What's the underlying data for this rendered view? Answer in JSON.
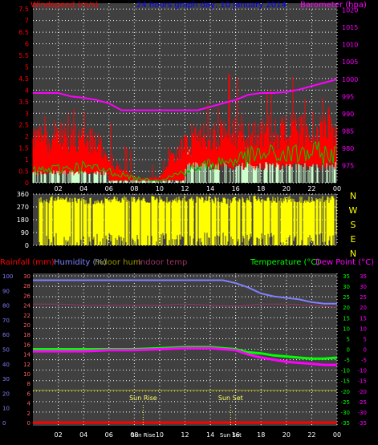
{
  "chart_data": [
    {
      "type": "bar",
      "panel": "wind-barometer",
      "title": "24 hours graph day, 10 January 2014",
      "y_left_label": "Windspeed (m/s)",
      "y_right_label": "Barometer (hpa)",
      "y_left_ticks": [
        "0",
        "0.5",
        "1",
        "1.5",
        "2",
        "2.5",
        "3",
        "3.5",
        "4",
        "4.5",
        "5",
        "5.5",
        "6",
        "6.5",
        "7",
        "7.5"
      ],
      "y_right_ticks": [
        "975",
        "980",
        "985",
        "990",
        "995",
        "1000",
        "1005",
        "1010",
        "1015",
        "1020"
      ],
      "x_ticks": [
        "02",
        "04",
        "06",
        "08",
        "10",
        "12",
        "14",
        "16",
        "18",
        "20",
        "22",
        "00"
      ],
      "ylim_left": [
        0,
        7.75
      ],
      "ylim_right": [
        970,
        1022
      ],
      "series": [
        {
          "name": "Windspeed (m/s)",
          "color": "#ff0000",
          "x": [
            0,
            1,
            2,
            3,
            4,
            5,
            6,
            7,
            8,
            9,
            10,
            11,
            12,
            13,
            14,
            15,
            16,
            17,
            18,
            19,
            20,
            21,
            22,
            23,
            24
          ],
          "values": [
            2.2,
            2.3,
            2.4,
            2.3,
            2.1,
            2.0,
            1.3,
            0.6,
            0.3,
            0.2,
            0.3,
            1.2,
            2.0,
            2.2,
            2.3,
            2.4,
            2.5,
            2.6,
            2.6,
            2.5,
            2.6,
            2.8,
            2.7,
            2.8,
            2.8
          ]
        },
        {
          "name": "Wind gust",
          "color": "#ff0000",
          "x": [
            0,
            2,
            4,
            6,
            8,
            10,
            12,
            14,
            16,
            18,
            20,
            22,
            24
          ],
          "values": [
            3.0,
            3.2,
            3.2,
            3.0,
            1.5,
            0.8,
            3.0,
            3.5,
            5.2,
            4.3,
            4.5,
            4.9,
            4.6
          ]
        },
        {
          "name": "Green average",
          "color": "#00cc00",
          "x": [
            0,
            2,
            4,
            6,
            8,
            10,
            12,
            14,
            16,
            18,
            20,
            22,
            24
          ],
          "values": [
            0.5,
            0.6,
            0.7,
            0.5,
            0.2,
            0.1,
            0.5,
            0.8,
            1.0,
            1.2,
            1.2,
            1.3,
            1.2
          ]
        },
        {
          "name": "Barometer (hpa)",
          "color": "#ff00ff",
          "x": [
            0,
            1,
            2,
            3,
            4,
            5,
            6,
            7,
            8,
            9,
            10,
            11,
            12,
            13,
            14,
            15,
            16,
            17,
            18,
            19,
            20,
            21,
            22,
            23,
            24
          ],
          "values": [
            996.0,
            996.0,
            996.0,
            995.0,
            994.6,
            994.0,
            993.0,
            991.0,
            991.0,
            991.0,
            991.0,
            991.0,
            991.0,
            991.0,
            992.0,
            993.0,
            994.0,
            995.5,
            996.0,
            996.0,
            996.3,
            997.0,
            998.0,
            999.0,
            1000.0
          ]
        }
      ]
    },
    {
      "type": "bar",
      "panel": "wind-direction",
      "y_ticks": [
        "0",
        "90",
        "180",
        "270",
        "360"
      ],
      "compass_labels": [
        "N",
        "W",
        "S",
        "E",
        "N"
      ],
      "x_ticks": [
        "02",
        "04",
        "06",
        "08",
        "10",
        "12",
        "14",
        "16",
        "18",
        "20",
        "22",
        "00"
      ],
      "ylim": [
        0,
        360
      ],
      "series": [
        {
          "name": "Wind direction",
          "color": "#ffff00",
          "x": [
            0,
            1,
            2,
            3,
            4,
            5,
            6,
            7,
            8,
            9,
            10,
            11,
            12,
            13,
            14,
            15,
            16,
            17,
            18,
            19,
            20,
            21,
            22,
            23,
            24
          ],
          "values": [
            340,
            350,
            345,
            350,
            340,
            330,
            345,
            350,
            340,
            345,
            350,
            340,
            350,
            345,
            350,
            340,
            345,
            350,
            350,
            345,
            350,
            340,
            350,
            345,
            350
          ]
        }
      ]
    },
    {
      "type": "line",
      "panel": "temperature-humidity",
      "labels": {
        "rainfall": "Rainfall (mm)",
        "humidity": "Humidity (%)",
        "indoor_hum": "Indoor hum",
        "indoor_temp": "Indoor temp",
        "temperature": "Temperature (°C)",
        "dew_point": "Dew Point (°C)"
      },
      "annotations": [
        "Sun Rise",
        "Sun Set"
      ],
      "x_ticks": [
        "02",
        "04",
        "06",
        "08",
        "10",
        "12",
        "14",
        "16",
        "18",
        "20",
        "22",
        "00"
      ],
      "x_ticks_extra": [
        "Sun Rise",
        "Sun Set"
      ],
      "y_ticks_rain": [
        "0",
        "2",
        "4",
        "6",
        "8",
        "10",
        "12",
        "14",
        "16",
        "18",
        "20",
        "22",
        "24",
        "26",
        "28",
        "30"
      ],
      "y_ticks_humidity": [
        "0",
        "10",
        "20",
        "30",
        "40",
        "50",
        "60",
        "70",
        "80",
        "90",
        "100"
      ],
      "y_ticks_temp": [
        "-35",
        "-30",
        "-25",
        "-20",
        "-15",
        "-10",
        "-5",
        "0",
        "5",
        "10",
        "15",
        "20",
        "25",
        "30",
        "35"
      ],
      "ylim_temp": [
        -35,
        35
      ],
      "ylim_humidity": [
        0,
        100
      ],
      "series": [
        {
          "name": "Humidity (%)",
          "color": "#8080ff",
          "x": [
            0,
            2,
            4,
            6,
            8,
            10,
            12,
            14,
            15,
            16,
            17,
            18,
            19,
            20,
            21,
            22,
            23,
            24
          ],
          "values": [
            97,
            97,
            97,
            97,
            97,
            97,
            97,
            97,
            97,
            95,
            92,
            88,
            86,
            85,
            84,
            82,
            81,
            81
          ]
        },
        {
          "name": "Indoor hum",
          "color": "#999900",
          "x": [
            0,
            4,
            8,
            12,
            16,
            20,
            24
          ],
          "values": [
            22,
            22,
            22,
            22,
            22,
            22,
            22
          ]
        },
        {
          "name": "Indoor temp",
          "color": "#993366",
          "x": [
            0,
            2,
            4,
            6,
            8,
            10,
            12,
            14,
            16,
            18,
            20,
            22,
            24
          ],
          "values": [
            21.5,
            21.5,
            21.0,
            21.0,
            21.0,
            21.0,
            21.5,
            21.0,
            20.5,
            21.5,
            21.5,
            21.0,
            20.0
          ]
        },
        {
          "name": "Temperature (°C)",
          "color": "#00ff00",
          "x": [
            0,
            2,
            4,
            6,
            8,
            10,
            12,
            14,
            15,
            16,
            17,
            18,
            19,
            20,
            21,
            22,
            23,
            24
          ],
          "values": [
            0,
            0,
            0,
            0,
            0,
            0.5,
            1,
            1,
            0.5,
            0,
            -1.5,
            -2,
            -3,
            -3.5,
            -4,
            -4.5,
            -4.5,
            -4
          ]
        },
        {
          "name": "Dew Point (°C)",
          "color": "#ff00ff",
          "x": [
            0,
            2,
            4,
            6,
            8,
            10,
            12,
            14,
            15,
            16,
            17,
            18,
            19,
            20,
            21,
            22,
            23,
            24
          ],
          "values": [
            -1,
            -1,
            -1,
            -0.5,
            -0.5,
            0,
            0.5,
            0.5,
            0,
            -0.5,
            -2.5,
            -4,
            -5,
            -6,
            -6.5,
            -7,
            -7.5,
            -7.5
          ]
        },
        {
          "name": "Rainfall (mm)",
          "color": "#ff0000",
          "x": [
            0,
            24
          ],
          "values": [
            0,
            0
          ]
        }
      ],
      "sun_rise_hour": 8.7,
      "sun_set_hour": 15.6
    }
  ],
  "colors": {
    "background": "#000000",
    "plot_bg": "#404040",
    "grid": "#ffffff",
    "wind": "#ff0000",
    "wind_low": "#ccffcc",
    "barometer": "#ff00ff",
    "direction": "#ffff00",
    "humidity": "#8080ff",
    "temperature": "#00ff00",
    "dew": "#ff00ff",
    "indoor_hum": "#999900",
    "indoor_temp": "#993366",
    "rain": "#ff0000"
  }
}
